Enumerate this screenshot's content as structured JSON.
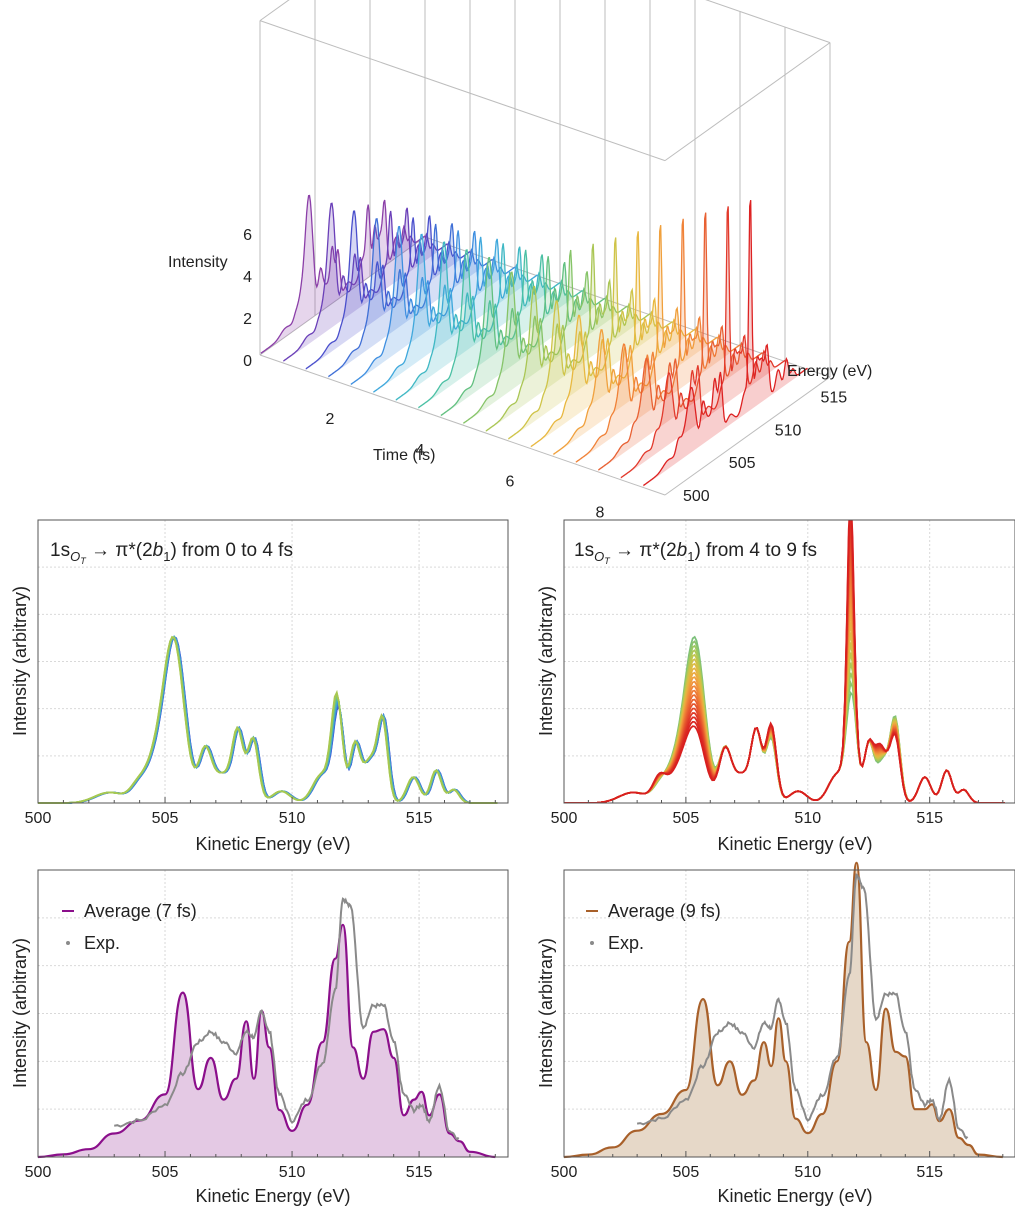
{
  "chart_data": [
    {
      "type": "area",
      "id": "waterfall",
      "zlabel": "Intensity",
      "xlabel": "Time (fs)",
      "ylabel": "Energy (eV)",
      "z_ticks": [
        "0",
        "2",
        "4",
        "6"
      ],
      "time_ticks": [
        "2",
        "4",
        "6",
        "8"
      ],
      "energy_ticks": [
        "500",
        "505",
        "510",
        "515"
      ],
      "time_range": [
        0,
        9
      ],
      "energy_range": [
        500,
        518
      ],
      "intensity_range": [
        0,
        7
      ],
      "colors": [
        "#8b3fa8",
        "#6a3fb8",
        "#4a4fcc",
        "#3f6fd6",
        "#3f8fe0",
        "#3fa8dc",
        "#3fb8c4",
        "#4ac0a4",
        "#62c080",
        "#86c468",
        "#aac654",
        "#cfc448",
        "#e8b840",
        "#f0a03c",
        "#f08238",
        "#e86032",
        "#e23a2c",
        "#dd2222"
      ]
    },
    {
      "type": "line",
      "id": "early",
      "title_main": "1s",
      "title_sub": "O",
      "title_subsub": "T",
      "title_rest": " → π*(2",
      "title_b": "b",
      "title_bsub": "1",
      "title_end": ") from 0 to 4 fs",
      "xlabel": "Kinetic Energy (eV)",
      "ylabel": "Intensity (arbitrary)",
      "x_ticks": [
        "500",
        "505",
        "510",
        "515"
      ],
      "xlim": [
        500,
        518.5
      ],
      "ylim": [
        0,
        6
      ],
      "time_range": [
        0,
        4
      ],
      "colors": [
        "#3a4fd0",
        "#3f78dc",
        "#3fa0d8",
        "#4cb8b0",
        "#7cc47c",
        "#a8c850"
      ]
    },
    {
      "type": "line",
      "id": "late",
      "title_main": "1s",
      "title_sub": "O",
      "title_subsub": "T",
      "title_rest": " → π*(2",
      "title_b": "b",
      "title_bsub": "1",
      "title_end": ") from 4 to 9 fs",
      "xlabel": "Kinetic Energy (eV)",
      "ylabel": "Intensity (arbitrary)",
      "x_ticks": [
        "500",
        "505",
        "510",
        "515"
      ],
      "xlim": [
        500,
        518.5
      ],
      "ylim": [
        0,
        6
      ],
      "time_range": [
        4,
        9
      ],
      "colors": [
        "#7cc07a",
        "#9cc860",
        "#c0c64c",
        "#dcbc44",
        "#ecaa40",
        "#f0923c",
        "#ee7a36",
        "#e86030",
        "#e2462a",
        "#dc2c24",
        "#d81f1f"
      ]
    },
    {
      "type": "area",
      "id": "avg7",
      "xlabel": "Kinetic Energy (eV)",
      "ylabel": "Intensity (arbitrary)",
      "x_ticks": [
        "500",
        "505",
        "510",
        "515"
      ],
      "xlim": [
        500,
        518.5
      ],
      "ylim": [
        0,
        5.5
      ],
      "legend": [
        "Average (7 fs)",
        "Exp."
      ],
      "legend_placement": "top-left",
      "series_color": "#8b0f8b",
      "fill_color": "#e4c9e4",
      "exp_color": "#8a8a8a",
      "series": [
        {
          "name": "Average (7 fs)",
          "x": [
            500,
            501,
            502,
            503,
            504,
            505,
            505.7,
            506.3,
            506.8,
            507.3,
            507.8,
            508.2,
            508.5,
            508.8,
            509.1,
            509.5,
            510,
            510.6,
            511.2,
            511.7,
            512.0,
            512.4,
            512.8,
            513.2,
            513.6,
            514.0,
            514.4,
            514.8,
            515.1,
            515.4,
            515.8,
            516.2,
            516.6,
            517.0,
            518.0
          ],
          "y": [
            0,
            0.05,
            0.15,
            0.45,
            0.7,
            1.2,
            3.15,
            1.3,
            1.9,
            1.1,
            1.5,
            2.6,
            1.5,
            2.8,
            2.1,
            0.9,
            0.5,
            1.0,
            2.2,
            3.8,
            4.45,
            2.1,
            1.5,
            2.4,
            2.45,
            1.9,
            0.8,
            1.1,
            1.25,
            0.8,
            1.2,
            0.45,
            0.3,
            0.1,
            0
          ]
        },
        {
          "name": "Exp.",
          "x": [
            503,
            504,
            505,
            505.7,
            506.3,
            506.8,
            507.3,
            507.8,
            508.2,
            508.5,
            508.8,
            509.1,
            509.5,
            510,
            510.6,
            511.2,
            511.7,
            512.0,
            512.3,
            512.8,
            513.2,
            513.6,
            514.0,
            514.4,
            514.8,
            515.1,
            515.4,
            515.8,
            516.2,
            516.6
          ],
          "y": [
            0.6,
            0.7,
            1.0,
            1.6,
            2.2,
            2.4,
            2.2,
            2.0,
            2.4,
            2.3,
            2.8,
            2.4,
            1.2,
            0.7,
            1.1,
            1.8,
            3.2,
            4.95,
            4.8,
            2.5,
            2.9,
            2.9,
            2.2,
            1.2,
            0.9,
            1.0,
            0.7,
            1.35,
            0.5,
            0.35
          ]
        }
      ]
    },
    {
      "type": "area",
      "id": "avg9",
      "xlabel": "Kinetic Energy (eV)",
      "ylabel": "Intensity (arbitrary)",
      "x_ticks": [
        "500",
        "505",
        "510",
        "515"
      ],
      "xlim": [
        500,
        518.5
      ],
      "ylim": [
        0,
        6
      ],
      "legend": [
        "Average (9 fs)",
        "Exp."
      ],
      "legend_placement": "top-left",
      "series_color": "#a8602a",
      "fill_color": "#e6d8c8",
      "exp_color": "#8a8a8a",
      "series": [
        {
          "name": "Average (9 fs)",
          "x": [
            500,
            501,
            502,
            503,
            504,
            505,
            505.7,
            506.3,
            506.8,
            507.3,
            507.8,
            508.2,
            508.5,
            508.8,
            509.1,
            509.5,
            510,
            510.6,
            511.2,
            511.7,
            512.0,
            512.4,
            512.8,
            513.2,
            513.6,
            514.0,
            514.4,
            514.8,
            515.1,
            515.4,
            515.8,
            516.2,
            516.6,
            517.0,
            518.0
          ],
          "y": [
            0,
            0.05,
            0.2,
            0.55,
            0.9,
            1.4,
            3.3,
            1.5,
            2.0,
            1.3,
            1.6,
            2.4,
            1.9,
            2.9,
            2.0,
            0.8,
            0.5,
            0.9,
            2.0,
            4.5,
            6.15,
            2.4,
            1.4,
            3.1,
            2.2,
            2.1,
            1.0,
            1.0,
            1.1,
            0.75,
            1.0,
            0.4,
            0.25,
            0.05,
            0
          ]
        },
        {
          "name": "Exp.",
          "x": [
            503,
            504,
            505,
            505.7,
            506.3,
            506.8,
            507.3,
            507.8,
            508.2,
            508.5,
            508.8,
            509.1,
            509.5,
            510,
            510.6,
            511.2,
            511.7,
            512.0,
            512.3,
            512.8,
            513.2,
            513.6,
            514.0,
            514.4,
            514.8,
            515.1,
            515.4,
            515.8,
            516.2,
            516.6
          ],
          "y": [
            0.7,
            0.8,
            1.2,
            1.9,
            2.6,
            2.8,
            2.6,
            2.3,
            2.8,
            2.7,
            3.3,
            2.8,
            1.4,
            0.8,
            1.3,
            2.1,
            3.8,
            5.9,
            5.6,
            2.9,
            3.4,
            3.4,
            2.6,
            1.4,
            1.1,
            1.2,
            0.8,
            1.6,
            0.6,
            0.4
          ]
        }
      ]
    }
  ]
}
